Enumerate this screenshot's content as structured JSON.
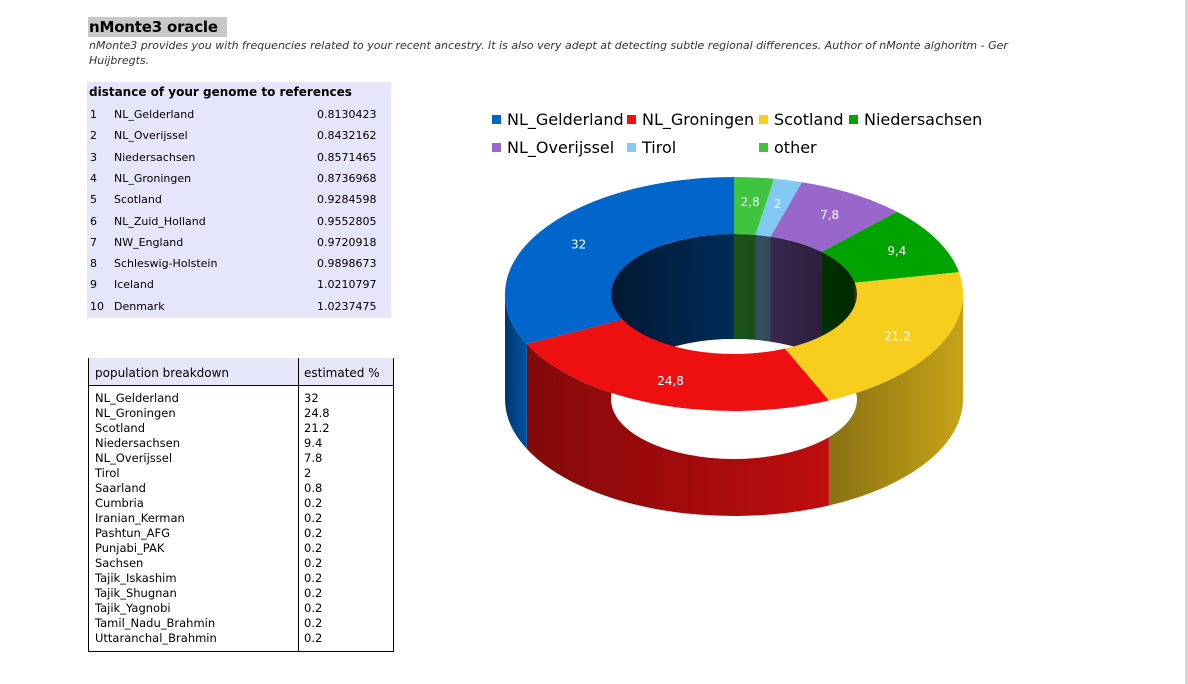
{
  "title": "nMonte3 oracle",
  "subtitle": "nMonte3 provides you with frequencies related to your recent ancestry. It is also very adept at detecting subtle regional differences. Author of nMonte alghoritm - Ger Huijbregts.",
  "distance_table": {
    "header": "distance of your genome to references",
    "rows": [
      {
        "rank": "1",
        "name": "NL_Gelderland",
        "value": "0.8130423"
      },
      {
        "rank": "2",
        "name": "NL_Overijssel",
        "value": "0.8432162"
      },
      {
        "rank": "3",
        "name": "Niedersachsen",
        "value": "0.8571465"
      },
      {
        "rank": "4",
        "name": "NL_Groningen",
        "value": "0.8736968"
      },
      {
        "rank": "5",
        "name": "Scotland",
        "value": "0.9284598"
      },
      {
        "rank": "6",
        "name": "NL_Zuid_Holland",
        "value": "0.9552805"
      },
      {
        "rank": "7",
        "name": "NW_England",
        "value": "0.9720918"
      },
      {
        "rank": "8",
        "name": "Schleswig-Holstein",
        "value": "0.9898673"
      },
      {
        "rank": "9",
        "name": "Iceland",
        "value": "1.0210797"
      },
      {
        "rank": "10",
        "name": "Denmark",
        "value": "1.0237475"
      }
    ]
  },
  "breakdown_table": {
    "header_left": "population breakdown",
    "header_right": "estimated %",
    "rows": [
      {
        "name": "NL_Gelderland",
        "pct": "32"
      },
      {
        "name": "NL_Groningen",
        "pct": "24.8"
      },
      {
        "name": "Scotland",
        "pct": "21.2"
      },
      {
        "name": "Niedersachsen",
        "pct": "9.4"
      },
      {
        "name": "NL_Overijssel",
        "pct": "7.8"
      },
      {
        "name": "Tirol",
        "pct": "2"
      },
      {
        "name": "Saarland",
        "pct": "0.8"
      },
      {
        "name": "Cumbria",
        "pct": "0.2"
      },
      {
        "name": "Iranian_Kerman",
        "pct": "0.2"
      },
      {
        "name": "Pashtun_AFG",
        "pct": "0.2"
      },
      {
        "name": "Punjabi_PAK",
        "pct": "0.2"
      },
      {
        "name": "Sachsen",
        "pct": "0.2"
      },
      {
        "name": "Tajik_Iskashim",
        "pct": "0.2"
      },
      {
        "name": "Tajik_Shugnan",
        "pct": "0.2"
      },
      {
        "name": "Tajik_Yagnobi",
        "pct": "0.2"
      },
      {
        "name": "Tamil_Nadu_Brahmin",
        "pct": "0.2"
      },
      {
        "name": "Uttaranchal_Brahmin",
        "pct": "0.2"
      }
    ]
  },
  "chart_data": {
    "type": "pie",
    "variant": "3d-doughnut",
    "legend_position": "top",
    "slices": [
      {
        "name": "other",
        "value": 2.8,
        "label": "2,8",
        "color": "#3ec43e"
      },
      {
        "name": "Tirol",
        "value": 2,
        "label": "2",
        "color": "#83c9f4"
      },
      {
        "name": "NL_Overijssel",
        "value": 7.8,
        "label": "7,8",
        "color": "#9966cc"
      },
      {
        "name": "Niedersachsen",
        "value": 9.4,
        "label": "9,4",
        "color": "#00a400"
      },
      {
        "name": "Scotland",
        "value": 21.2,
        "label": "21,2",
        "color": "#f7cd1e"
      },
      {
        "name": "NL_Groningen",
        "value": 24.8,
        "label": "24,8",
        "color": "#ee1010"
      },
      {
        "name": "NL_Gelderland",
        "value": 32,
        "label": "32",
        "color": "#0066cc"
      }
    ],
    "legend": [
      {
        "name": "NL_Gelderland",
        "color": "#0066cc"
      },
      {
        "name": "NL_Groningen",
        "color": "#ee1010"
      },
      {
        "name": "Scotland",
        "color": "#f7cd1e"
      },
      {
        "name": "Niedersachsen",
        "color": "#00a400"
      },
      {
        "name": "NL_Overijssel",
        "color": "#9966cc"
      },
      {
        "name": "Tirol",
        "color": "#83c9f4"
      },
      {
        "name": "other",
        "color": "#3ec43e"
      }
    ]
  }
}
